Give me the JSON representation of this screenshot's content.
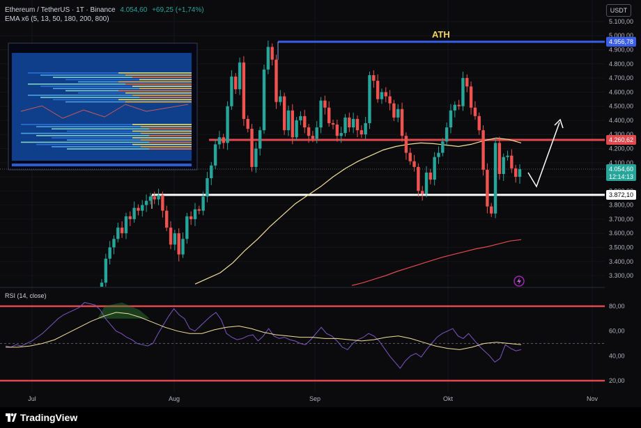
{
  "header": {
    "symbol": "Ethereum / TetherUS · 1T · Binance",
    "price": "4.054,60",
    "change": "+69,25 (+1,74%)",
    "indicator": "EMA x6  (5, 13, 50, 180, 200, 800)"
  },
  "currency_button": "USDT",
  "brand": "TradingView",
  "colors": {
    "up": "#26a69a",
    "down": "#ef5350",
    "ath": "#3a5ee8",
    "resistance": "#e04a4f",
    "support": "#ffffff",
    "ema_short": "#f3e19a",
    "ema_long": "#e04a4f",
    "rsi_line": "#7e57c2",
    "rsi_ma": "#f3e19a"
  },
  "icons": [
    "lightning-icon",
    "tradingview-logo-icon"
  ],
  "chart_data": [
    {
      "type": "candlestick",
      "title": "Ethereum / TetherUS",
      "timeframe": "1T",
      "x_ticks": [
        "Jul",
        "Aug",
        "Sep",
        "Okt",
        "Nov"
      ],
      "y_ticks": [
        "3.300,00",
        "3.400,00",
        "3.500,00",
        "3.600,00",
        "3.700,00",
        "3.800,00",
        "3.900,00",
        "4.000,00",
        "4.100,00",
        "4.200,00",
        "4.300,00",
        "4.400,00",
        "4.500,00",
        "4.600,00",
        "4.700,00",
        "4.800,00",
        "4.900,00",
        "5.000,00",
        "5.100,00"
      ],
      "ylim": [
        3230,
        5160
      ],
      "annotations": [
        "ATH"
      ],
      "levels": [
        {
          "name": "ath",
          "value": 4956.78,
          "label": "4.956,78"
        },
        {
          "name": "resistance",
          "value": 4260.62,
          "label": "4.260,62"
        },
        {
          "name": "current",
          "value": 4054.6,
          "label": "4.054,60",
          "countdown": "12:14:13"
        },
        {
          "name": "support",
          "value": 3872.1,
          "label": "3.872,10"
        }
      ],
      "ohlc_close": [
        3250,
        3420,
        3500,
        3560,
        3640,
        3600,
        3720,
        3700,
        3780,
        3760,
        3800,
        3830,
        3860,
        3840,
        3870,
        3760,
        3640,
        3520,
        3600,
        3450,
        3560,
        3720,
        3700,
        3770,
        3760,
        3860,
        3990,
        4080,
        4230,
        4280,
        4240,
        4500,
        4710,
        4620,
        4810,
        4410,
        4340,
        4070,
        4200,
        4330,
        4760,
        4920,
        4830,
        4530,
        4570,
        4330,
        4470,
        4280,
        4400,
        4430,
        4350,
        4290,
        4270,
        4350,
        4540,
        4490,
        4380,
        4370,
        4290,
        4310,
        4420,
        4350,
        4410,
        4330,
        4300,
        4380,
        4720,
        4680,
        4550,
        4600,
        4570,
        4520,
        4420,
        4480,
        4290,
        4170,
        4110,
        4070,
        3900,
        3880,
        4030,
        3980,
        4140,
        4170,
        4250,
        4350,
        4470,
        4510,
        4500,
        4700,
        4640,
        4490,
        4430,
        4330,
        4050,
        3790,
        3740,
        4240,
        4020,
        4140,
        4150,
        4060,
        4000,
        4054
      ],
      "ema_short_values": [
        3240,
        3280,
        3320,
        3390,
        3480,
        3560,
        3650,
        3730,
        3810,
        3870,
        3930,
        4000,
        4060,
        4110,
        4150,
        4190,
        4215,
        4230,
        4240,
        4235,
        4225,
        4215,
        4230,
        4255,
        4275,
        4265,
        4240
      ],
      "ema_long_values": [
        3230,
        3250,
        3275,
        3300,
        3330,
        3355,
        3380,
        3405,
        3430,
        3450,
        3470,
        3490,
        3505,
        3525,
        3545,
        3555
      ],
      "inset": {
        "type": "heatmap",
        "title": "liquidation heatmap"
      }
    },
    {
      "type": "line",
      "title": "RSI (14, close)",
      "y_ticks": [
        "20,00",
        "40,00",
        "60,00",
        "80,00"
      ],
      "ylim": [
        15,
        90
      ],
      "bands": [
        80,
        50,
        20
      ],
      "series": [
        {
          "name": "RSI",
          "values": [
            48,
            47,
            49,
            48,
            50,
            52,
            55,
            58,
            62,
            66,
            70,
            73,
            75,
            77,
            79,
            83,
            82,
            81,
            77,
            70,
            65,
            60,
            58,
            55,
            53,
            50,
            49,
            48,
            50,
            58,
            65,
            72,
            78,
            73,
            70,
            62,
            60,
            64,
            68,
            72,
            75,
            69,
            58,
            55,
            53,
            54,
            56,
            57,
            52,
            56,
            62,
            56,
            54,
            55,
            53,
            52,
            50,
            49,
            53,
            58,
            63,
            58,
            56,
            52,
            47,
            45,
            50,
            53,
            55,
            58,
            56,
            52,
            46,
            40,
            35,
            30,
            36,
            40,
            42,
            39,
            45,
            50,
            55,
            58,
            60,
            62,
            56,
            54,
            58,
            53,
            48,
            44,
            40,
            35,
            38,
            49,
            46,
            44,
            45
          ]
        },
        {
          "name": "MA",
          "values": [
            47,
            47,
            48,
            50,
            53,
            58,
            63,
            68,
            72,
            75,
            74,
            71,
            67,
            63,
            60,
            58,
            58,
            61,
            63,
            64,
            62,
            59,
            57,
            56,
            55,
            55,
            54,
            54,
            53,
            52,
            53,
            55,
            56,
            54,
            51,
            48,
            46,
            45,
            47,
            50,
            51,
            50,
            49
          ]
        }
      ]
    }
  ]
}
